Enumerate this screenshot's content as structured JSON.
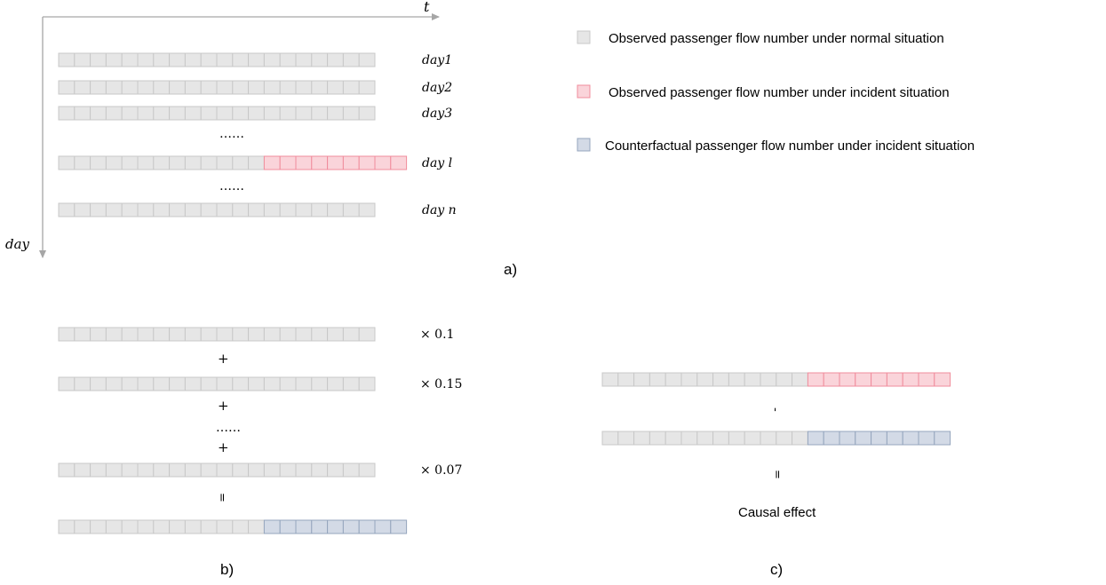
{
  "colors": {
    "normal_fill": "#e6e6e6",
    "normal_stroke": "#c8c8c8",
    "incident_fill": "#fad4da",
    "incident_stroke": "#f08c9c",
    "counterfactual_fill": "#d3dae6",
    "counterfactual_stroke": "#95a5bd",
    "axis": "#a6a6a6"
  },
  "legend": {
    "items": [
      {
        "kind": "normal",
        "label": "Observed passenger flow number under normal situation"
      },
      {
        "kind": "incident",
        "label": "Observed passenger flow number under incident situation"
      },
      {
        "kind": "counterfactual",
        "label": "Counterfactual passenger flow number under incident situation"
      }
    ]
  },
  "panel_a": {
    "label": "a)",
    "axis_t": "t",
    "axis_day": "day",
    "rows": [
      {
        "label": "day1",
        "normal_cells": 20,
        "highlight_cells": 0,
        "highlight_kind": ""
      },
      {
        "label": "day2",
        "normal_cells": 20,
        "highlight_cells": 0,
        "highlight_kind": ""
      },
      {
        "label": "day3",
        "normal_cells": 20,
        "highlight_cells": 0,
        "highlight_kind": ""
      },
      {
        "label": "day l",
        "normal_cells": 13,
        "highlight_cells": 9,
        "highlight_kind": "incident"
      },
      {
        "label": "day n",
        "normal_cells": 20,
        "highlight_cells": 0,
        "highlight_kind": ""
      }
    ],
    "ellipses": [
      "……",
      "……"
    ]
  },
  "panel_b": {
    "label": "b)",
    "rows": [
      {
        "normal_cells": 20,
        "highlight_cells": 0,
        "highlight_kind": "",
        "weight": "× 0.1"
      },
      {
        "normal_cells": 20,
        "highlight_cells": 0,
        "highlight_kind": "",
        "weight": "× 0.15"
      },
      {
        "normal_cells": 20,
        "highlight_cells": 0,
        "highlight_kind": "",
        "weight": "× 0.07"
      },
      {
        "normal_cells": 13,
        "highlight_cells": 9,
        "highlight_kind": "counterfactual",
        "weight": ""
      }
    ],
    "operators": [
      "+",
      "+",
      "……",
      "+",
      "="
    ]
  },
  "panel_c": {
    "label": "c)",
    "rows": [
      {
        "normal_cells": 13,
        "highlight_cells": 9,
        "highlight_kind": "incident"
      },
      {
        "normal_cells": 13,
        "highlight_cells": 9,
        "highlight_kind": "counterfactual"
      }
    ],
    "operators": [
      "-",
      "="
    ],
    "result_label": "Causal effect"
  }
}
